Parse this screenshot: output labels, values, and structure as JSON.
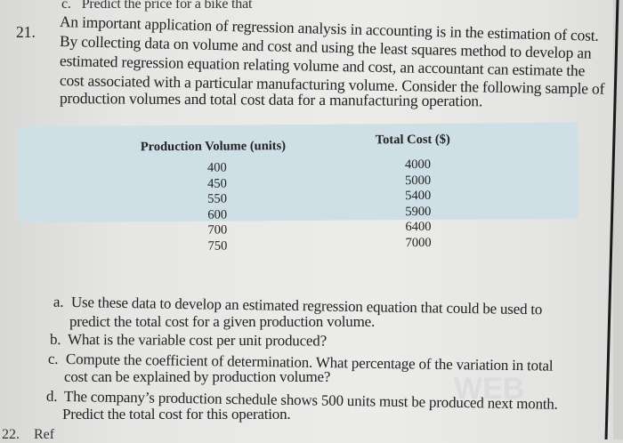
{
  "previous_question": {
    "label": "c.",
    "text": "Predict the price for a bike that"
  },
  "question": {
    "number": "21.",
    "intro_lines": [
      "An important application of regression analysis in accounting is in the estimation of cost.",
      "By collecting data on volume and cost and using the least squares method to develop an",
      "estimated regression equation relating volume and cost, an accountant can estimate the",
      "cost associated with a particular manufacturing volume. Consider the following sample of",
      "production volumes and total cost data for a manufacturing operation."
    ],
    "table": {
      "headers": [
        "Production Volume (units)",
        "Total Cost ($)"
      ],
      "volumes": [
        "400",
        "450",
        "550",
        "600",
        "700",
        "750"
      ],
      "costs": [
        "4000",
        "5000",
        "5400",
        "5900",
        "6400",
        "7000"
      ]
    },
    "parts": {
      "a": {
        "label": "a.",
        "lines": [
          "Use these data to develop an estimated regression equation that could be used to",
          "predict the total cost for a given production volume."
        ]
      },
      "b": {
        "label": "b.",
        "lines": [
          "What is the variable cost per unit produced?"
        ]
      },
      "c": {
        "label": "c.",
        "lines": [
          "Compute the coefficient of determination. What percentage of the variation in total",
          "cost can be explained by production volume?"
        ]
      },
      "d": {
        "label": "d.",
        "lines": [
          "The company’s production schedule shows 500 units must be produced next month.",
          "Predict the total cost for this operation."
        ]
      }
    }
  },
  "next_question": {
    "number": "22.",
    "text": "Ref"
  },
  "watermark": "WEB"
}
